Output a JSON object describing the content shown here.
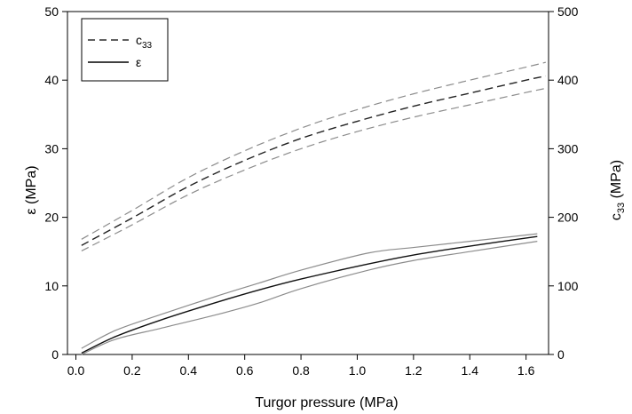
{
  "chart_data": {
    "type": "line",
    "xlabel": "Turgor pressure (MPa)",
    "ylabel": "ε (MPa)",
    "ylabel_right_main": "c",
    "ylabel_right_sub": "33",
    "ylabel_right_suffix": " (MPa)",
    "xlim": [
      -0.03,
      1.68
    ],
    "ylim": [
      0,
      50
    ],
    "ylim_right": [
      0,
      500
    ],
    "x_ticks": [
      "0.0",
      "0.2",
      "0.4",
      "0.6",
      "0.8",
      "1.0",
      "1.2",
      "1.4",
      "1.6"
    ],
    "y_ticks": [
      "0",
      "10",
      "20",
      "30",
      "40",
      "50"
    ],
    "y_ticks_right": [
      "0",
      "100",
      "200",
      "300",
      "400",
      "500"
    ],
    "grid": false,
    "legend": {
      "placement": "top-left",
      "entries": [
        {
          "main": "c",
          "sub": "33",
          "style": "dashed"
        },
        {
          "main": "ε",
          "sub": "",
          "style": "solid"
        }
      ]
    },
    "series": [
      {
        "axis": "right",
        "style": "dashed",
        "color": "#222222",
        "role": "mean",
        "points": [
          [
            0.02,
            159
          ],
          [
            0.2,
            199
          ],
          [
            0.4,
            245
          ],
          [
            0.6,
            283
          ],
          [
            0.8,
            315
          ],
          [
            1.0,
            340
          ],
          [
            1.2,
            362
          ],
          [
            1.4,
            381
          ],
          [
            1.6,
            400
          ],
          [
            1.67,
            406
          ]
        ]
      },
      {
        "axis": "right",
        "style": "dashed",
        "color": "#8c8c8c",
        "role": "upper",
        "points": [
          [
            0.02,
            168
          ],
          [
            0.2,
            210
          ],
          [
            0.4,
            258
          ],
          [
            0.6,
            297
          ],
          [
            0.8,
            330
          ],
          [
            1.0,
            357
          ],
          [
            1.2,
            380
          ],
          [
            1.4,
            400
          ],
          [
            1.6,
            419
          ],
          [
            1.67,
            426
          ]
        ]
      },
      {
        "axis": "right",
        "style": "dashed",
        "color": "#8c8c8c",
        "role": "lower",
        "points": [
          [
            0.02,
            151
          ],
          [
            0.2,
            189
          ],
          [
            0.4,
            233
          ],
          [
            0.6,
            269
          ],
          [
            0.8,
            300
          ],
          [
            1.0,
            325
          ],
          [
            1.2,
            346
          ],
          [
            1.4,
            364
          ],
          [
            1.6,
            382
          ],
          [
            1.67,
            388
          ]
        ]
      },
      {
        "axis": "left",
        "style": "solid",
        "color": "#111111",
        "role": "mean",
        "points": [
          [
            0.02,
            0.2
          ],
          [
            0.14,
            2.6
          ],
          [
            0.3,
            5.0
          ],
          [
            0.5,
            7.6
          ],
          [
            0.65,
            9.4
          ],
          [
            0.8,
            11.0
          ],
          [
            1.04,
            13.2
          ],
          [
            1.2,
            14.5
          ],
          [
            1.4,
            15.8
          ],
          [
            1.64,
            17.2
          ]
        ]
      },
      {
        "axis": "left",
        "style": "solid",
        "color": "#8c8c8c",
        "role": "upper",
        "points": [
          [
            0.02,
            0.9
          ],
          [
            0.14,
            3.5
          ],
          [
            0.3,
            5.8
          ],
          [
            0.5,
            8.5
          ],
          [
            0.65,
            10.4
          ],
          [
            0.8,
            12.3
          ],
          [
            1.04,
            14.8
          ],
          [
            1.2,
            15.6
          ],
          [
            1.4,
            16.5
          ],
          [
            1.64,
            17.6
          ]
        ]
      },
      {
        "axis": "left",
        "style": "solid",
        "color": "#8c8c8c",
        "role": "lower",
        "points": [
          [
            0.02,
            0.0
          ],
          [
            0.14,
            2.2
          ],
          [
            0.3,
            3.8
          ],
          [
            0.5,
            5.8
          ],
          [
            0.65,
            7.5
          ],
          [
            0.8,
            9.6
          ],
          [
            1.04,
            12.3
          ],
          [
            1.2,
            13.7
          ],
          [
            1.4,
            15.0
          ],
          [
            1.64,
            16.5
          ]
        ]
      }
    ]
  }
}
